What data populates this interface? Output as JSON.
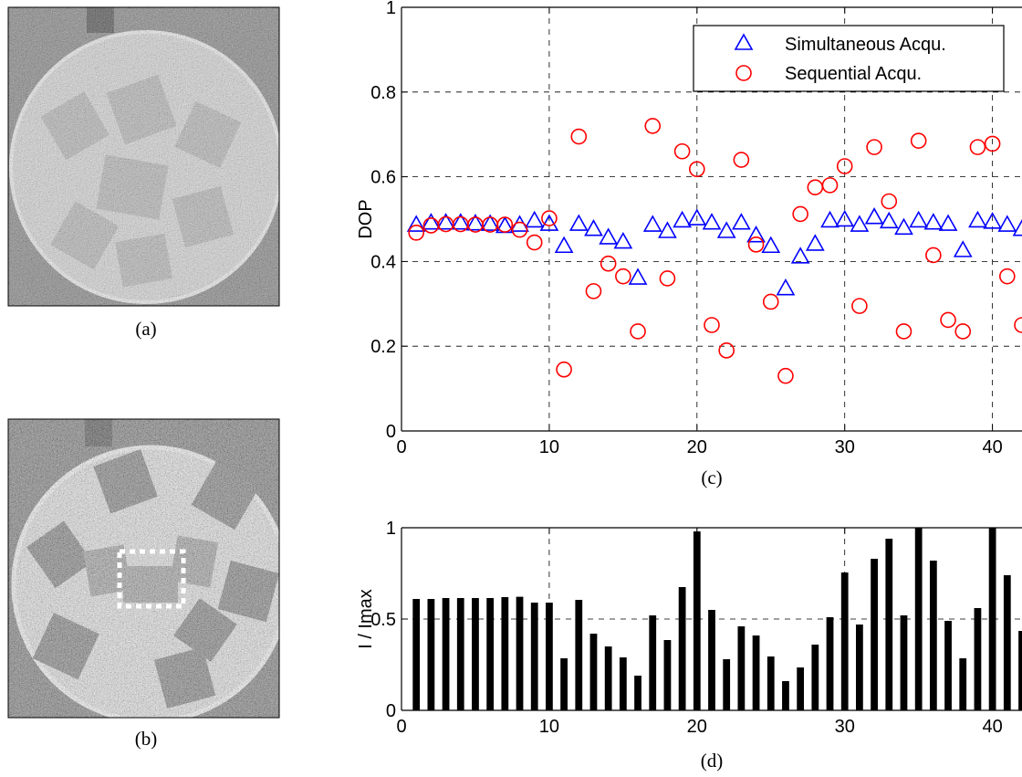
{
  "panel_captions": {
    "a": "(a)",
    "b": "(b)",
    "c": "(c)",
    "d": "(d)"
  },
  "images": [
    {
      "caption": "(a)",
      "description_icon": "noisy-disk-image"
    },
    {
      "caption": "(b)",
      "description_icon": "noisy-disk-image-with-roi"
    }
  ],
  "colors": {
    "simultaneous": "#0000ff",
    "sequential": "#ff0000",
    "bars": "#000000",
    "grid": "#000000",
    "roi_box": "#ffffff"
  },
  "chart_data": [
    {
      "id": "c",
      "type": "scatter",
      "title": "",
      "xlabel": "",
      "ylabel": "DOP",
      "xlim": [
        0,
        42
      ],
      "ylim": [
        0,
        1
      ],
      "xticks": [
        0,
        10,
        20,
        30,
        40
      ],
      "yticks": [
        0,
        0.2,
        0.4,
        0.6,
        0.8,
        1
      ],
      "xtick_labels": [
        "0",
        "10",
        "20",
        "30",
        "40"
      ],
      "ytick_labels": [
        "0",
        "0.2",
        "0.4",
        "0.6",
        "0.8",
        "1"
      ],
      "grid": true,
      "legend_position": "top-right",
      "series": [
        {
          "name": "Simultaneous Acqu.",
          "marker": "triangle",
          "color": "#0000ff",
          "x": [
            1,
            2,
            3,
            4,
            5,
            6,
            7,
            8,
            9,
            10,
            11,
            12,
            13,
            14,
            15,
            16,
            17,
            18,
            19,
            20,
            21,
            22,
            23,
            24,
            25,
            26,
            27,
            28,
            29,
            30,
            31,
            32,
            33,
            34,
            35,
            36,
            37,
            38,
            39,
            40,
            41,
            42
          ],
          "y": [
            0.485,
            0.49,
            0.49,
            0.49,
            0.488,
            0.487,
            0.482,
            0.485,
            0.495,
            0.487,
            0.435,
            0.487,
            0.475,
            0.455,
            0.445,
            0.36,
            0.485,
            0.47,
            0.495,
            0.5,
            0.49,
            0.47,
            0.49,
            0.46,
            0.435,
            0.335,
            0.41,
            0.44,
            0.495,
            0.497,
            0.485,
            0.503,
            0.493,
            0.478,
            0.495,
            0.49,
            0.487,
            0.425,
            0.495,
            0.492,
            0.485,
            0.475
          ]
        },
        {
          "name": "Sequential Acqu.",
          "marker": "circle",
          "color": "#ff0000",
          "x": [
            1,
            2,
            3,
            4,
            5,
            6,
            7,
            8,
            9,
            10,
            11,
            12,
            13,
            14,
            15,
            16,
            17,
            18,
            19,
            20,
            21,
            22,
            23,
            24,
            25,
            26,
            27,
            28,
            29,
            30,
            31,
            32,
            33,
            34,
            35,
            36,
            37,
            38,
            39,
            40,
            41,
            42
          ],
          "y": [
            0.468,
            0.485,
            0.488,
            0.488,
            0.487,
            0.487,
            0.487,
            0.475,
            0.445,
            0.502,
            0.145,
            0.695,
            0.33,
            0.395,
            0.365,
            0.235,
            0.72,
            0.36,
            0.66,
            0.618,
            0.25,
            0.19,
            0.64,
            0.44,
            0.305,
            0.13,
            0.512,
            0.575,
            0.58,
            0.625,
            0.295,
            0.67,
            0.542,
            0.235,
            0.685,
            0.415,
            0.262,
            0.235,
            0.67,
            0.678,
            0.365,
            0.25
          ]
        }
      ]
    },
    {
      "id": "d",
      "type": "bar",
      "title": "",
      "xlabel": "",
      "ylabel": "I / Imax",
      "xlim": [
        0,
        42
      ],
      "ylim": [
        0,
        1
      ],
      "xticks": [
        0,
        10,
        20,
        30,
        40
      ],
      "yticks": [
        0,
        0.5,
        1
      ],
      "xtick_labels": [
        "0",
        "10",
        "20",
        "30",
        "40"
      ],
      "ytick_labels": [
        "0",
        "0.5",
        "1"
      ],
      "grid": true,
      "categories": [
        1,
        2,
        3,
        4,
        5,
        6,
        7,
        8,
        9,
        10,
        11,
        12,
        13,
        14,
        15,
        16,
        17,
        18,
        19,
        20,
        21,
        22,
        23,
        24,
        25,
        26,
        27,
        28,
        29,
        30,
        31,
        32,
        33,
        34,
        35,
        36,
        37,
        38,
        39,
        40,
        41,
        42
      ],
      "values": [
        0.61,
        0.61,
        0.615,
        0.615,
        0.615,
        0.615,
        0.62,
        0.622,
        0.59,
        0.59,
        0.285,
        0.605,
        0.42,
        0.35,
        0.29,
        0.19,
        0.52,
        0.385,
        0.675,
        0.98,
        0.55,
        0.28,
        0.46,
        0.41,
        0.295,
        0.16,
        0.235,
        0.36,
        0.51,
        0.755,
        0.47,
        0.83,
        0.94,
        0.52,
        1.0,
        0.82,
        0.49,
        0.285,
        0.56,
        1.0,
        0.74,
        0.435
      ]
    }
  ]
}
